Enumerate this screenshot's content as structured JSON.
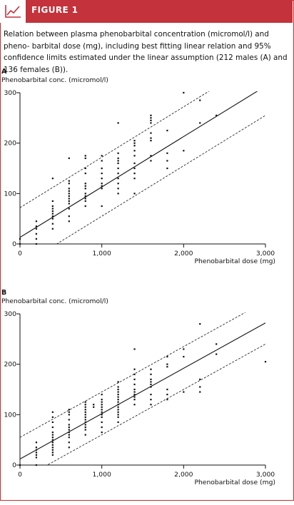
{
  "header": {
    "title": "FIGURE 1",
    "icon": "line-chart-icon"
  },
  "caption": {
    "text": "Relation between plasma phenobarbital concentration (micromol/l) and pheno- barbital dose (mg), including best fitting linear relation and 95% confidence limits estimated under the linear assumption (212 males (A) and 136 females (B))."
  },
  "colors": {
    "accent": "#c4323b",
    "ink": "#111111"
  },
  "chart_data": [
    {
      "panel": "A",
      "type": "scatter",
      "ylabel": "Phenobarbital conc. (micromol/l)",
      "xlabel": "Phenobarbital dose (mg)",
      "xlim": [
        0,
        3000
      ],
      "ylim": [
        0,
        300
      ],
      "x_ticks": [
        0,
        1000,
        2000,
        3000
      ],
      "x_tick_labels": [
        "0",
        "1,000",
        "2,000",
        "3,000"
      ],
      "y_ticks": [
        0,
        100,
        200,
        300
      ],
      "y_tick_labels": [
        "0",
        "100",
        "200",
        "300"
      ],
      "grid": false,
      "lines": {
        "fit": {
          "intercept": 13,
          "slope": 0.1
        },
        "upper": {
          "intercept": 72,
          "slope": 0.1
        },
        "lower": {
          "intercept": -45,
          "slope": 0.1
        }
      },
      "points": [
        [
          0,
          10
        ],
        [
          0,
          0
        ],
        [
          200,
          0
        ],
        [
          200,
          10
        ],
        [
          200,
          20
        ],
        [
          200,
          30
        ],
        [
          200,
          35
        ],
        [
          200,
          45
        ],
        [
          400,
          30
        ],
        [
          400,
          40
        ],
        [
          400,
          50
        ],
        [
          400,
          55
        ],
        [
          400,
          60
        ],
        [
          400,
          65
        ],
        [
          400,
          70
        ],
        [
          400,
          75
        ],
        [
          400,
          85
        ],
        [
          400,
          130
        ],
        [
          600,
          45
        ],
        [
          600,
          55
        ],
        [
          600,
          70
        ],
        [
          600,
          80
        ],
        [
          600,
          85
        ],
        [
          600,
          90
        ],
        [
          600,
          95
        ],
        [
          600,
          100
        ],
        [
          600,
          105
        ],
        [
          600,
          110
        ],
        [
          600,
          120
        ],
        [
          600,
          125
        ],
        [
          600,
          170
        ],
        [
          800,
          75
        ],
        [
          800,
          85
        ],
        [
          800,
          90
        ],
        [
          800,
          95
        ],
        [
          800,
          100
        ],
        [
          800,
          110
        ],
        [
          800,
          115
        ],
        [
          800,
          120
        ],
        [
          800,
          140
        ],
        [
          800,
          150
        ],
        [
          800,
          170
        ],
        [
          800,
          175
        ],
        [
          1000,
          75
        ],
        [
          1000,
          110
        ],
        [
          1000,
          115
        ],
        [
          1000,
          120
        ],
        [
          1000,
          130
        ],
        [
          1000,
          140
        ],
        [
          1000,
          150
        ],
        [
          1000,
          165
        ],
        [
          1000,
          175
        ],
        [
          1200,
          100
        ],
        [
          1200,
          110
        ],
        [
          1200,
          120
        ],
        [
          1200,
          130
        ],
        [
          1200,
          140
        ],
        [
          1200,
          150
        ],
        [
          1200,
          160
        ],
        [
          1200,
          165
        ],
        [
          1200,
          170
        ],
        [
          1200,
          180
        ],
        [
          1200,
          240
        ],
        [
          1400,
          100
        ],
        [
          1400,
          130
        ],
        [
          1400,
          140
        ],
        [
          1400,
          150
        ],
        [
          1400,
          160
        ],
        [
          1400,
          175
        ],
        [
          1400,
          185
        ],
        [
          1400,
          195
        ],
        [
          1400,
          200
        ],
        [
          1400,
          205
        ],
        [
          1600,
          165
        ],
        [
          1600,
          175
        ],
        [
          1600,
          205
        ],
        [
          1600,
          210
        ],
        [
          1600,
          220
        ],
        [
          1600,
          240
        ],
        [
          1600,
          245
        ],
        [
          1600,
          250
        ],
        [
          1600,
          255
        ],
        [
          1800,
          150
        ],
        [
          1800,
          165
        ],
        [
          1800,
          180
        ],
        [
          1800,
          225
        ],
        [
          2000,
          185
        ],
        [
          2000,
          300
        ],
        [
          2200,
          240
        ],
        [
          2200,
          285
        ],
        [
          2400,
          255
        ]
      ]
    },
    {
      "panel": "B",
      "type": "scatter",
      "ylabel": "Phenobarbital conc. (micromol/l)",
      "xlabel": "Phenobarbital dose (mg)",
      "xlim": [
        0,
        3000
      ],
      "ylim": [
        0,
        300
      ],
      "x_ticks": [
        0,
        1000,
        2000,
        3000
      ],
      "x_tick_labels": [
        "0",
        "1,000",
        "2,000",
        "3,000"
      ],
      "y_ticks": [
        0,
        100,
        200,
        300
      ],
      "y_tick_labels": [
        "0",
        "100",
        "200",
        "300"
      ],
      "grid": false,
      "lines": {
        "fit": {
          "intercept": 12,
          "slope": 0.09
        },
        "upper": {
          "intercept": 55,
          "slope": 0.09
        },
        "lower": {
          "intercept": -30,
          "slope": 0.09
        }
      },
      "points": [
        [
          0,
          0
        ],
        [
          200,
          0
        ],
        [
          200,
          15
        ],
        [
          200,
          20
        ],
        [
          200,
          25
        ],
        [
          200,
          30
        ],
        [
          200,
          35
        ],
        [
          200,
          45
        ],
        [
          400,
          20
        ],
        [
          400,
          25
        ],
        [
          400,
          30
        ],
        [
          400,
          35
        ],
        [
          400,
          40
        ],
        [
          400,
          45
        ],
        [
          400,
          50
        ],
        [
          400,
          55
        ],
        [
          400,
          60
        ],
        [
          400,
          65
        ],
        [
          400,
          75
        ],
        [
          400,
          85
        ],
        [
          400,
          95
        ],
        [
          400,
          105
        ],
        [
          600,
          35
        ],
        [
          600,
          45
        ],
        [
          600,
          55
        ],
        [
          600,
          60
        ],
        [
          600,
          65
        ],
        [
          600,
          70
        ],
        [
          600,
          75
        ],
        [
          600,
          80
        ],
        [
          600,
          90
        ],
        [
          600,
          100
        ],
        [
          600,
          105
        ],
        [
          600,
          110
        ],
        [
          800,
          60
        ],
        [
          800,
          70
        ],
        [
          800,
          75
        ],
        [
          800,
          80
        ],
        [
          800,
          85
        ],
        [
          800,
          90
        ],
        [
          800,
          95
        ],
        [
          800,
          100
        ],
        [
          800,
          105
        ],
        [
          800,
          110
        ],
        [
          800,
          115
        ],
        [
          800,
          120
        ],
        [
          800,
          125
        ],
        [
          900,
          115
        ],
        [
          900,
          120
        ],
        [
          1000,
          65
        ],
        [
          1000,
          75
        ],
        [
          1000,
          85
        ],
        [
          1000,
          95
        ],
        [
          1000,
          100
        ],
        [
          1000,
          105
        ],
        [
          1000,
          110
        ],
        [
          1000,
          115
        ],
        [
          1000,
          120
        ],
        [
          1000,
          125
        ],
        [
          1000,
          130
        ],
        [
          1000,
          140
        ],
        [
          1200,
          85
        ],
        [
          1200,
          95
        ],
        [
          1200,
          100
        ],
        [
          1200,
          105
        ],
        [
          1200,
          110
        ],
        [
          1200,
          115
        ],
        [
          1200,
          120
        ],
        [
          1200,
          125
        ],
        [
          1200,
          130
        ],
        [
          1200,
          135
        ],
        [
          1200,
          140
        ],
        [
          1200,
          145
        ],
        [
          1200,
          150
        ],
        [
          1200,
          155
        ],
        [
          1200,
          165
        ],
        [
          1400,
          120
        ],
        [
          1400,
          130
        ],
        [
          1400,
          135
        ],
        [
          1400,
          140
        ],
        [
          1400,
          145
        ],
        [
          1400,
          150
        ],
        [
          1400,
          160
        ],
        [
          1400,
          170
        ],
        [
          1400,
          180
        ],
        [
          1400,
          190
        ],
        [
          1400,
          230
        ],
        [
          1600,
          120
        ],
        [
          1600,
          130
        ],
        [
          1600,
          140
        ],
        [
          1600,
          155
        ],
        [
          1600,
          160
        ],
        [
          1600,
          165
        ],
        [
          1600,
          170
        ],
        [
          1600,
          180
        ],
        [
          1600,
          190
        ],
        [
          1800,
          130
        ],
        [
          1800,
          140
        ],
        [
          1800,
          150
        ],
        [
          1800,
          195
        ],
        [
          1800,
          200
        ],
        [
          1800,
          215
        ],
        [
          2000,
          145
        ],
        [
          2000,
          215
        ],
        [
          2000,
          230
        ],
        [
          2200,
          145
        ],
        [
          2200,
          155
        ],
        [
          2200,
          170
        ],
        [
          2200,
          280
        ],
        [
          2400,
          220
        ],
        [
          2400,
          240
        ],
        [
          3000,
          205
        ]
      ]
    }
  ]
}
